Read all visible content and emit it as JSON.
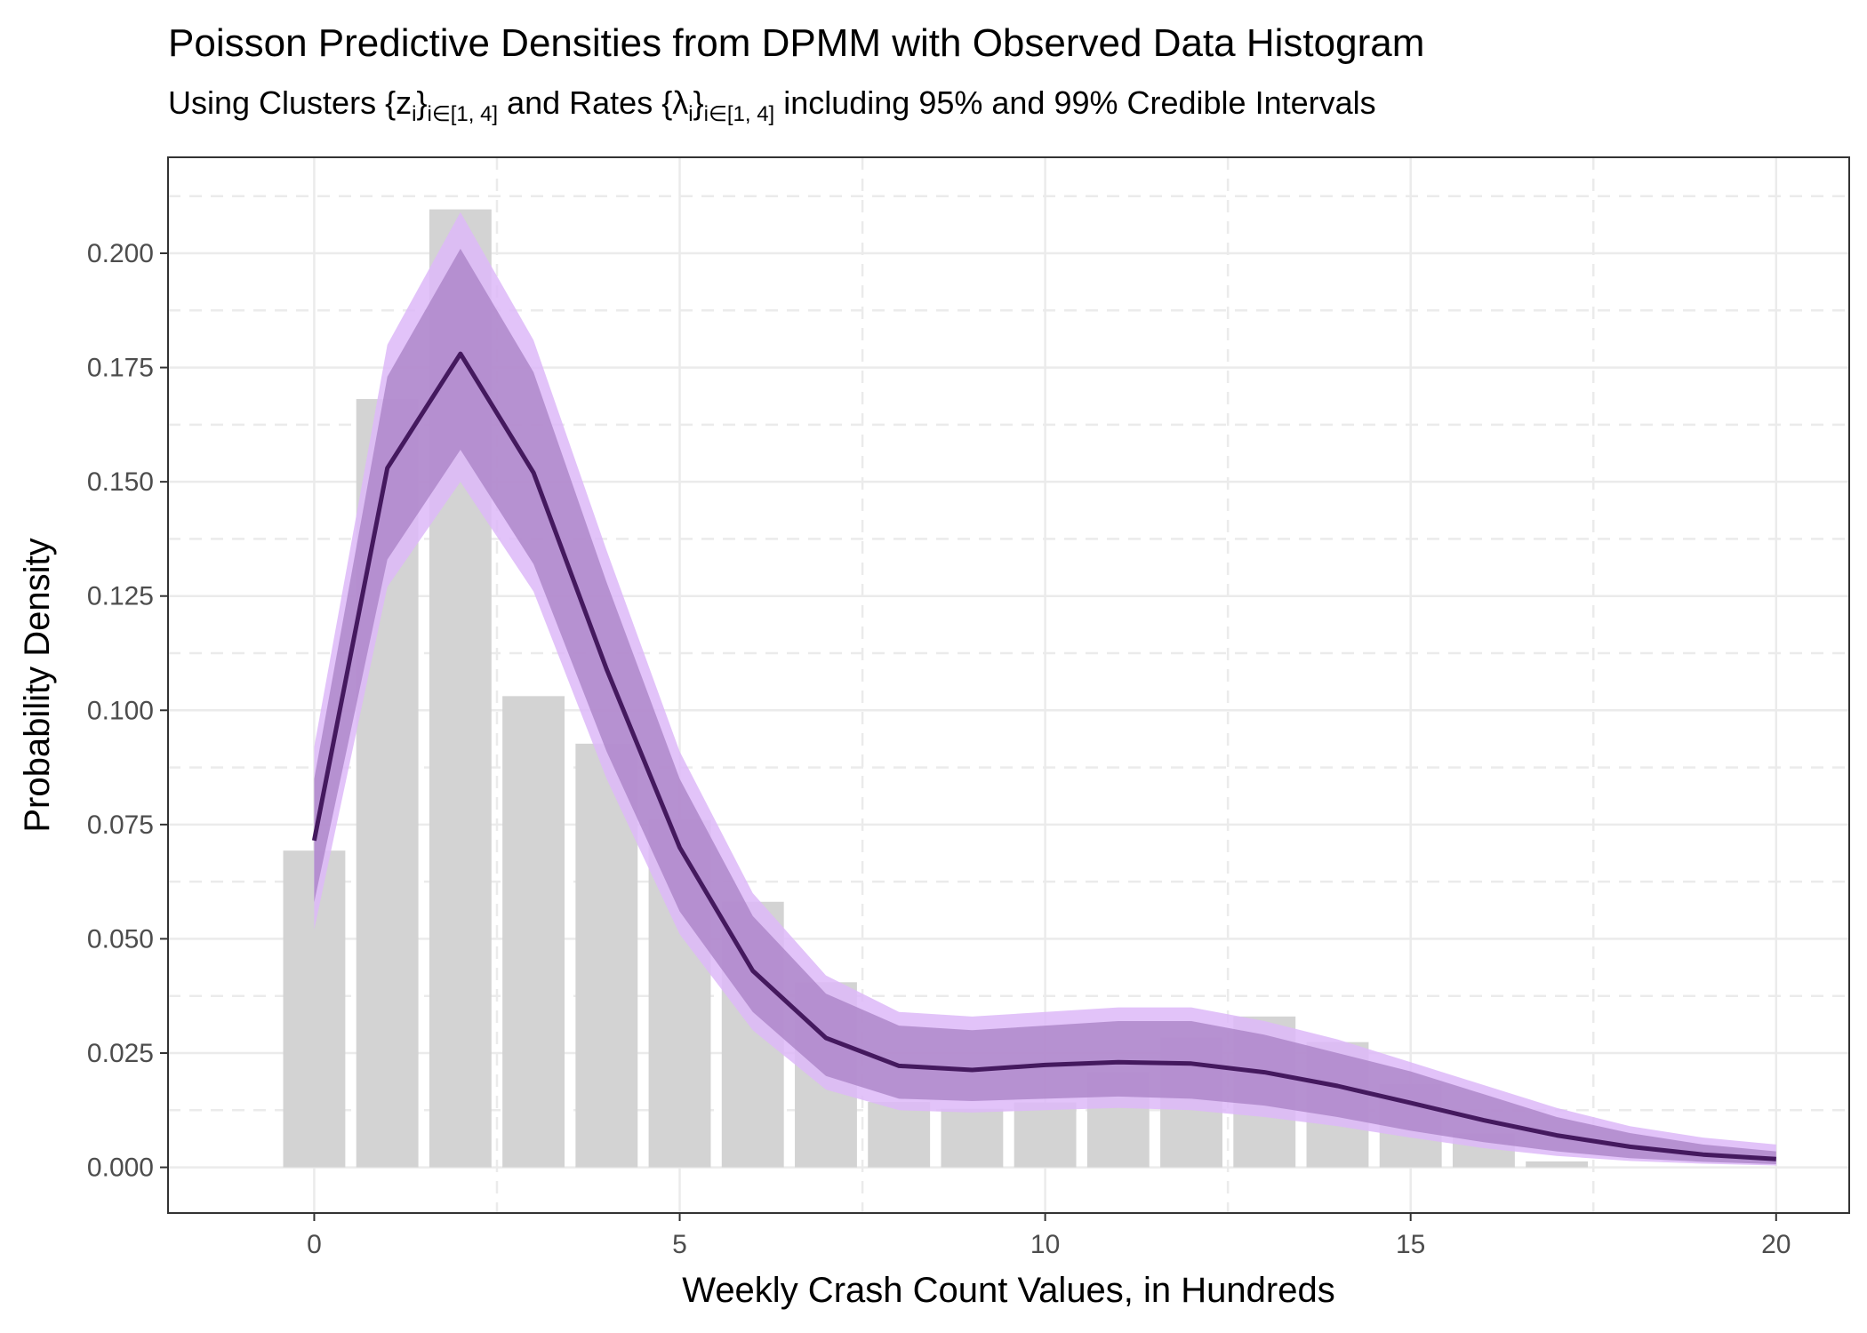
{
  "chart_data": {
    "type": "bar",
    "title": "Poisson Predictive Densities from DPMM with Observed Data Histogram",
    "subtitle": {
      "p1": "Using Clusters {z",
      "s1": "i",
      "p2": "}",
      "s2": "i∈[1, 4]",
      "p3": " and Rates {λ",
      "s3": "i",
      "p4": "}",
      "s4": "i∈[1, 4]",
      "p5": " including 95% and 99% Credible Intervals"
    },
    "xlabel": "Weekly Crash Count Values, in Hundreds",
    "ylabel": "Probability Density",
    "xlim": [
      -2,
      21
    ],
    "ylim": [
      -0.01,
      0.221
    ],
    "x_ticks": [
      0,
      5,
      10,
      15,
      20
    ],
    "x_tick_labels": [
      "0",
      "5",
      "10",
      "15",
      "20"
    ],
    "y_ticks": [
      0,
      0.025,
      0.05,
      0.075,
      0.1,
      0.125,
      0.15,
      0.175,
      0.2
    ],
    "y_tick_labels": [
      "0.000",
      "0.025",
      "0.050",
      "0.075",
      "0.100",
      "0.125",
      "0.150",
      "0.175",
      "0.200"
    ],
    "grid": true,
    "histogram": {
      "x": [
        0,
        1,
        2,
        3,
        4,
        5,
        6,
        7,
        8,
        9,
        10,
        11,
        12,
        13,
        14,
        15,
        16,
        17
      ],
      "values": [
        0.0693,
        0.1681,
        0.2096,
        0.1031,
        0.0927,
        0.076,
        0.0581,
        0.0405,
        0.0143,
        0.0128,
        0.0142,
        0.0209,
        0.0284,
        0.033,
        0.0274,
        0.0182,
        0.0074,
        0.0013
      ],
      "color": "#d3d3d3"
    },
    "density": {
      "x": [
        0,
        1,
        2,
        3,
        4,
        5,
        6,
        7,
        8,
        9,
        10,
        11,
        12,
        13,
        14,
        15,
        16,
        17,
        18,
        19,
        20
      ],
      "mean": [
        0.0715,
        0.153,
        0.178,
        0.152,
        0.109,
        0.07,
        0.043,
        0.0283,
        0.0222,
        0.0213,
        0.0224,
        0.023,
        0.0227,
        0.0208,
        0.0178,
        0.0141,
        0.0103,
        0.007,
        0.0045,
        0.0028,
        0.0018
      ],
      "ci95_lower": [
        0.058,
        0.133,
        0.157,
        0.132,
        0.091,
        0.056,
        0.034,
        0.02,
        0.015,
        0.0145,
        0.015,
        0.0155,
        0.015,
        0.0135,
        0.011,
        0.008,
        0.0055,
        0.0035,
        0.002,
        0.0012,
        0.0007
      ],
      "ci95_upper": [
        0.085,
        0.173,
        0.201,
        0.174,
        0.128,
        0.085,
        0.055,
        0.038,
        0.031,
        0.03,
        0.031,
        0.032,
        0.032,
        0.029,
        0.025,
        0.021,
        0.016,
        0.011,
        0.0075,
        0.005,
        0.0035
      ],
      "ci99_lower": [
        0.052,
        0.127,
        0.15,
        0.126,
        0.085,
        0.051,
        0.03,
        0.017,
        0.0125,
        0.012,
        0.0125,
        0.013,
        0.0125,
        0.011,
        0.009,
        0.0065,
        0.0042,
        0.0025,
        0.0014,
        0.0008,
        0.0004
      ],
      "ci99_upper": [
        0.092,
        0.18,
        0.209,
        0.181,
        0.135,
        0.091,
        0.06,
        0.042,
        0.034,
        0.033,
        0.034,
        0.035,
        0.035,
        0.032,
        0.028,
        0.023,
        0.018,
        0.013,
        0.009,
        0.0065,
        0.005
      ],
      "line_color": "#44195e",
      "band95_color": "#a47cc0",
      "band99_color": "#ddb9f8"
    }
  }
}
